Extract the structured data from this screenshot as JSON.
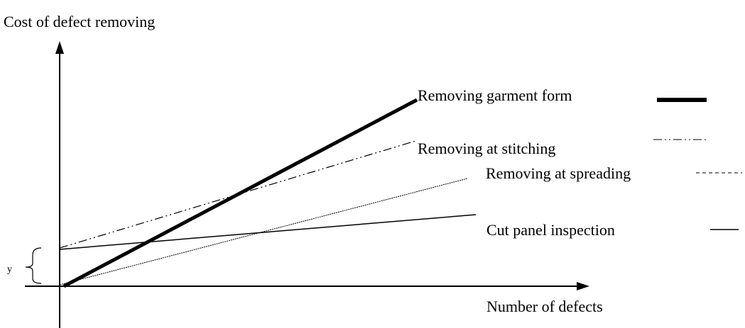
{
  "diagram": {
    "y_axis_label": "Cost of defect removing",
    "x_axis_label": "Number of defects",
    "offset_label": "y",
    "lines": [
      {
        "label": "Removing garment form"
      },
      {
        "label": "Removing at stitching"
      },
      {
        "label": "Removing at spreading"
      },
      {
        "label": "Cut panel inspection"
      }
    ]
  }
}
